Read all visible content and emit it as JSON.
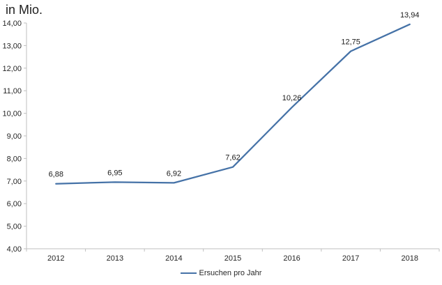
{
  "title": "in Mio.",
  "colors": {
    "line": "#4572a7",
    "axis": "#bfbfbf",
    "tick_text": "#262626",
    "data_label_text": "#1a1a1a",
    "title_text": "#1f1f1f",
    "background": "#ffffff"
  },
  "chart_data": {
    "type": "line",
    "title": "in Mio.",
    "xlabel": "",
    "ylabel": "",
    "categories": [
      "2012",
      "2013",
      "2014",
      "2015",
      "2016",
      "2017",
      "2018"
    ],
    "series": [
      {
        "name": "Ersuchen pro Jahr",
        "values": [
          6.88,
          6.95,
          6.92,
          7.62,
          10.26,
          12.75,
          13.94
        ]
      }
    ],
    "data_labels": [
      "6,88",
      "6,95",
      "6,92",
      "7,62",
      "10,26",
      "12,75",
      "13,94"
    ],
    "ylim": [
      4,
      14
    ],
    "y_step": 1,
    "y_tick_labels": [
      "14,00",
      "13,00",
      "12,00",
      "11,00",
      "10,00",
      "9,00",
      "8,00",
      "7,00",
      "6,00",
      "5,00",
      "4,00"
    ],
    "grid": false,
    "legend_position": "bottom"
  }
}
